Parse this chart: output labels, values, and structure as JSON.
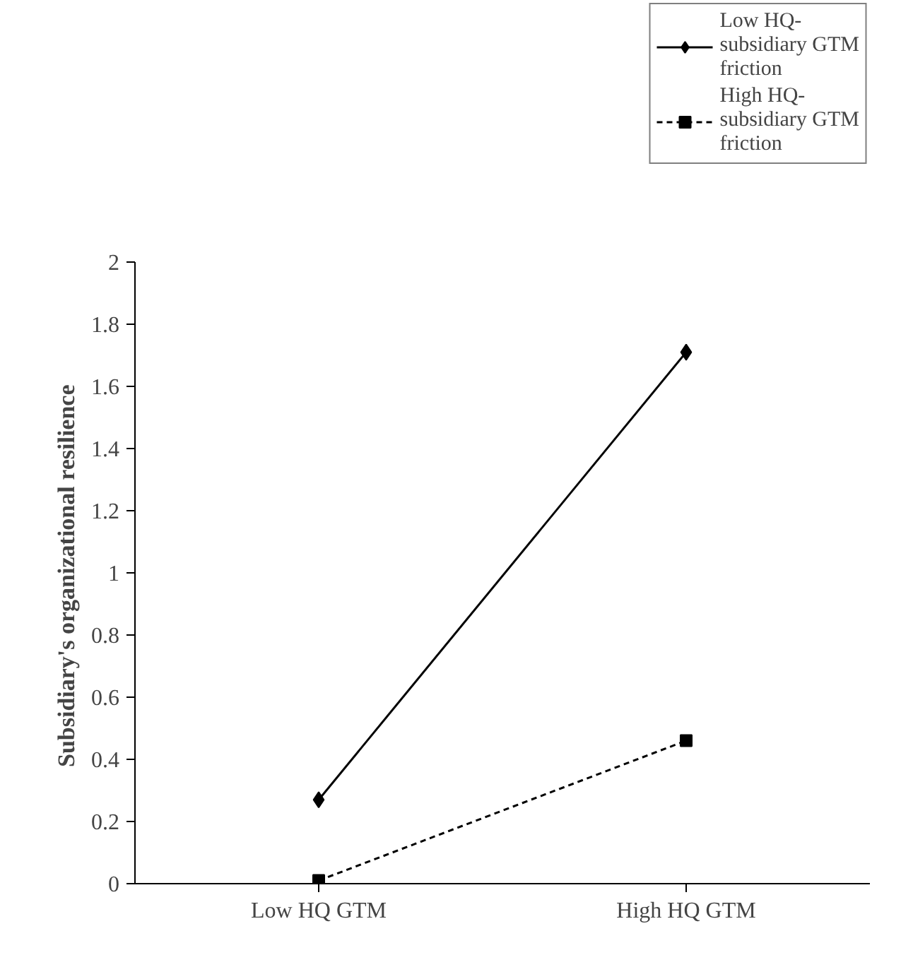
{
  "chart_data": {
    "type": "line",
    "ylabel": "Subsidiary's organizational  resilience",
    "categories": [
      "Low HQ GTM",
      "High HQ GTM"
    ],
    "series": [
      {
        "name": "Low HQ-subsidiary GTM friction",
        "color": "#000000",
        "values": [
          0.27,
          1.71
        ],
        "marker": "diamond",
        "line_style": "solid"
      },
      {
        "name": "High HQ-subsidiary GTM friction",
        "color": "#000000",
        "values": [
          0.01,
          0.46
        ],
        "marker": "square",
        "line_style": "dashed"
      }
    ],
    "ylim": [
      0,
      2
    ],
    "yticks": [
      0,
      0.2,
      0.4,
      0.6,
      0.8,
      1,
      1.2,
      1.4,
      1.6,
      1.8,
      2
    ],
    "grid": false,
    "legend": "top right"
  }
}
